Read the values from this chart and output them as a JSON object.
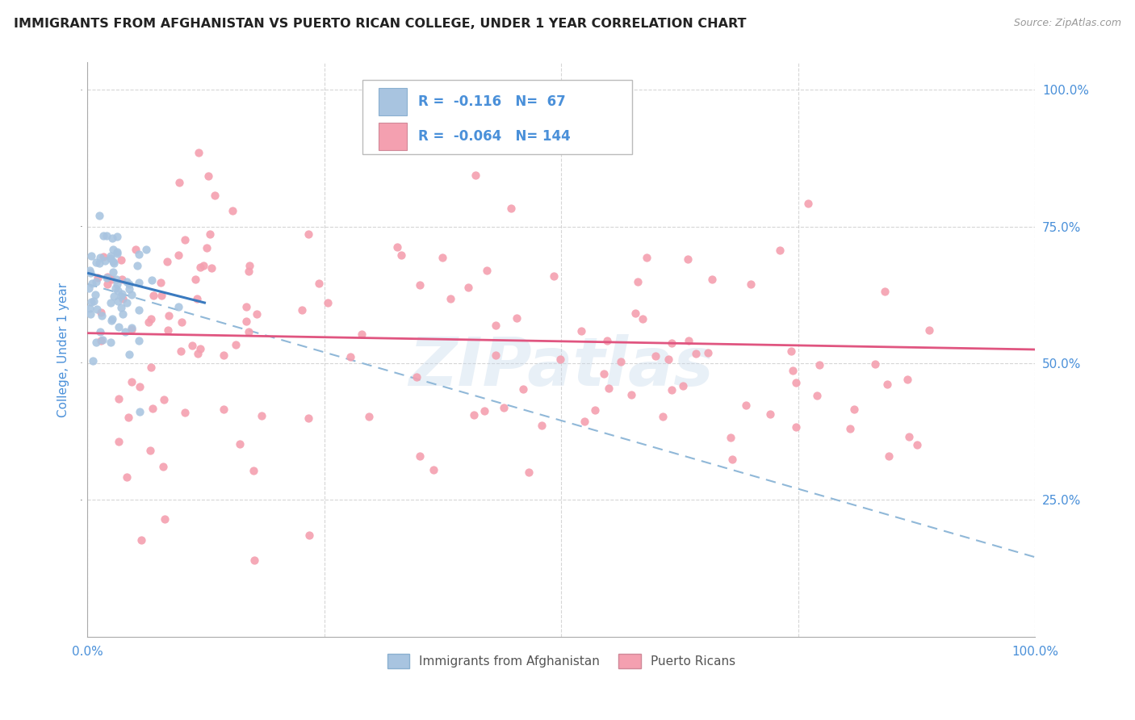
{
  "title": "IMMIGRANTS FROM AFGHANISTAN VS PUERTO RICAN COLLEGE, UNDER 1 YEAR CORRELATION CHART",
  "source": "Source: ZipAtlas.com",
  "ylabel": "College, Under 1 year",
  "watermark": "ZIPatlas",
  "legend_label1": "Immigrants from Afghanistan",
  "legend_label2": "Puerto Ricans",
  "R1": -0.116,
  "N1": 67,
  "R2": -0.064,
  "N2": 144,
  "color1": "#a8c4e0",
  "color2": "#f4a0b0",
  "trendline1_color": "#3a7abf",
  "trendline2_color": "#e05580",
  "trendline_dash_color": "#90b8d8",
  "background": "#ffffff",
  "grid_color": "#cccccc",
  "title_color": "#222222",
  "source_color": "#999999",
  "axis_label_color": "#4a90d9",
  "legend_r_color": "#4a90d9",
  "xlim": [
    0.0,
    1.0
  ],
  "ylim": [
    0.0,
    1.05
  ]
}
